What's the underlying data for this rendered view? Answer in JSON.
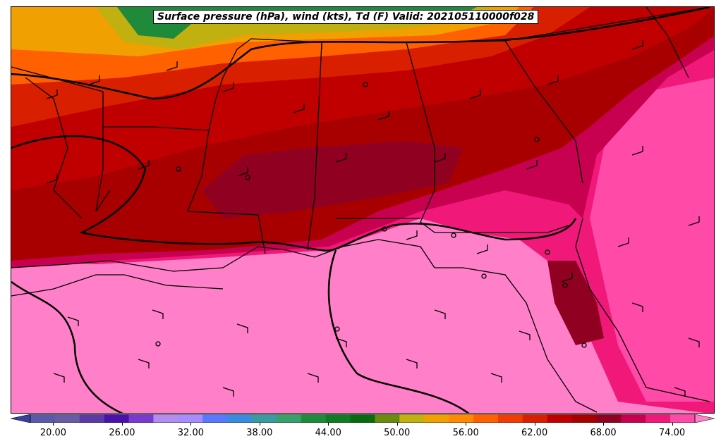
{
  "title": "Surface pressure (hPa), wind (kts), Td (F) Valid: 202105110000f028",
  "colorbar": {
    "tick_labels": [
      "20.00",
      "26.00",
      "32.00",
      "38.00",
      "44.00",
      "50.00",
      "56.00",
      "62.00",
      "68.00",
      "74.00"
    ],
    "tick_values": [
      20,
      26,
      32,
      38,
      44,
      50,
      56,
      62,
      68,
      74
    ],
    "min": 18,
    "max": 76,
    "step": 2,
    "colors": [
      "#3a3f9e",
      "#5a5aa8",
      "#6a5ca4",
      "#5c3aa6",
      "#4a12a8",
      "#7a3ad0",
      "#b48cf0",
      "#a88cff",
      "#5a78ff",
      "#3a8ae0",
      "#3a9aa0",
      "#3aa06a",
      "#1e8a3a",
      "#127a22",
      "#0a6a10",
      "#6a8a10",
      "#c0b010",
      "#f0a000",
      "#ff8a00",
      "#ff6000",
      "#f03c00",
      "#d82000",
      "#c00000",
      "#a80000",
      "#900020",
      "#c80050",
      "#f01878",
      "#ff4aa8",
      "#ff7fc8"
    ]
  },
  "map": {
    "fill_colors": {
      "ocean": "#ff7fc8",
      "humid": "#f01878",
      "moist": "#c80050",
      "very_dry": "#900020",
      "dry": "#a80000",
      "mid": "#c00000",
      "warm_mid": "#d82000",
      "orange": "#ff6000",
      "light_orange": "#f0a000",
      "yellow": "#c0b010",
      "green": "#1e8a3a"
    },
    "contour_color": "#000000"
  }
}
